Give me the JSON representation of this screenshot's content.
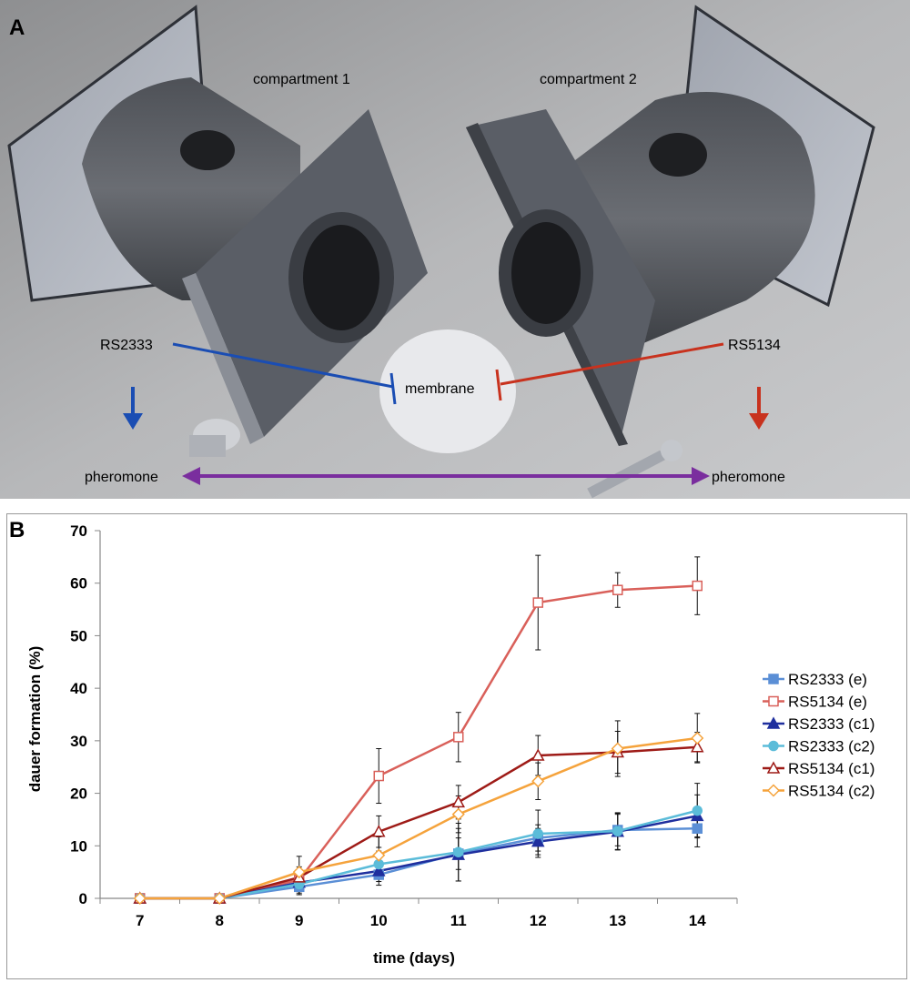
{
  "panel_a": {
    "label": "A",
    "compartment1": "compartment 1",
    "compartment2": "compartment 2",
    "strain_left": "RS2333",
    "strain_right": "RS5134",
    "membrane": "membrane",
    "pheromone_left": "pheromone",
    "pheromone_right": "pheromone",
    "colors": {
      "blue": "#1a4db3",
      "red": "#c8321e",
      "purple": "#7a2e9e"
    }
  },
  "panel_b": {
    "label": "B"
  },
  "chart_data": {
    "type": "line",
    "xlabel": "time (days)",
    "ylabel": "dauer formation (%)",
    "x": [
      7,
      8,
      9,
      10,
      11,
      12,
      13,
      14
    ],
    "xlim": [
      6.5,
      14.5
    ],
    "ylim": [
      0,
      70
    ],
    "yticks": [
      0,
      10,
      20,
      30,
      40,
      50,
      60,
      70
    ],
    "grid": false,
    "legend": "right",
    "series": [
      {
        "name": "RS2333 (e)",
        "color": "#5b8fd6",
        "marker": "square-filled",
        "values": [
          0,
          0,
          2.2,
          4.5,
          8.5,
          11.5,
          13.0,
          13.3
        ],
        "errors": [
          0,
          0,
          1.5,
          2,
          3,
          2.5,
          3,
          3.5
        ]
      },
      {
        "name": "RS5134 (e)",
        "color": "#d9605a",
        "marker": "square-open",
        "values": [
          0,
          0,
          3.5,
          23.3,
          30.7,
          56.3,
          58.7,
          59.5
        ],
        "errors": [
          0,
          0,
          2,
          5.2,
          4.7,
          9,
          3.3,
          5.5
        ]
      },
      {
        "name": "RS2333 (c1)",
        "color": "#1f2f9e",
        "marker": "triangle-filled",
        "values": [
          0,
          0,
          3.0,
          5.2,
          8.3,
          10.8,
          12.7,
          15.7
        ],
        "errors": [
          0,
          0,
          2,
          2,
          5,
          2.5,
          3.5,
          4
        ]
      },
      {
        "name": "RS2333 (c2)",
        "color": "#5bbcd9",
        "marker": "circle-filled",
        "values": [
          0,
          0,
          2.7,
          6.5,
          8.8,
          12.3,
          12.8,
          16.7
        ],
        "errors": [
          0,
          0,
          2,
          2.5,
          5.5,
          4.5,
          3.5,
          5.2
        ]
      },
      {
        "name": "RS5134 (c1)",
        "color": "#9e1b17",
        "marker": "triangle-open",
        "values": [
          0,
          0,
          4.0,
          12.7,
          18.3,
          27.2,
          27.8,
          28.8
        ],
        "errors": [
          0,
          0,
          2,
          3,
          3.2,
          3.8,
          4,
          2.8
        ]
      },
      {
        "name": "RS5134 (c2)",
        "color": "#f5a33c",
        "marker": "diamond-open",
        "values": [
          0,
          0,
          5.0,
          8.2,
          16.0,
          22.3,
          28.5,
          30.5
        ],
        "errors": [
          0,
          0,
          3,
          3.5,
          3.5,
          3.5,
          5.3,
          4.7
        ]
      }
    ]
  }
}
